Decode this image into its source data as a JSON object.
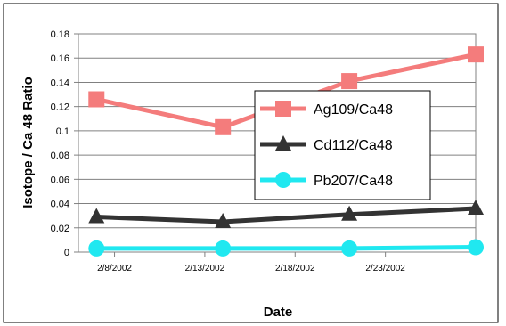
{
  "chart_data": {
    "type": "line",
    "title": "",
    "xlabel": "Date",
    "ylabel": "Isotope / Ca 48 Ratio",
    "x": [
      "2002-02-07",
      "2002-02-14",
      "2002-02-21",
      "2002-02-28"
    ],
    "x_ticks": [
      "2/8/2002",
      "2/13/2002",
      "2/18/2002",
      "2/23/2002"
    ],
    "y_ticks": [
      "0",
      "0.02",
      "0.04",
      "0.06",
      "0.08",
      "0.1",
      "0.12",
      "0.14",
      "0.16",
      "0.18"
    ],
    "ylim": [
      0,
      0.18
    ],
    "xlim": [
      "2002-02-06",
      "2002-02-28"
    ],
    "grid": true,
    "legend_position": "center-right",
    "series": [
      {
        "name": "Ag109/Ca48",
        "values": [
          0.126,
          0.103,
          0.141,
          0.163
        ],
        "color": "#f47c7c",
        "marker": "square"
      },
      {
        "name": "Cd112/Ca48",
        "values": [
          0.029,
          0.025,
          0.031,
          0.036
        ],
        "color": "#333333",
        "marker": "triangle"
      },
      {
        "name": "Pb207/Ca48",
        "values": [
          0.003,
          0.003,
          0.003,
          0.004
        ],
        "color": "#20e8f0",
        "marker": "circle"
      }
    ]
  }
}
